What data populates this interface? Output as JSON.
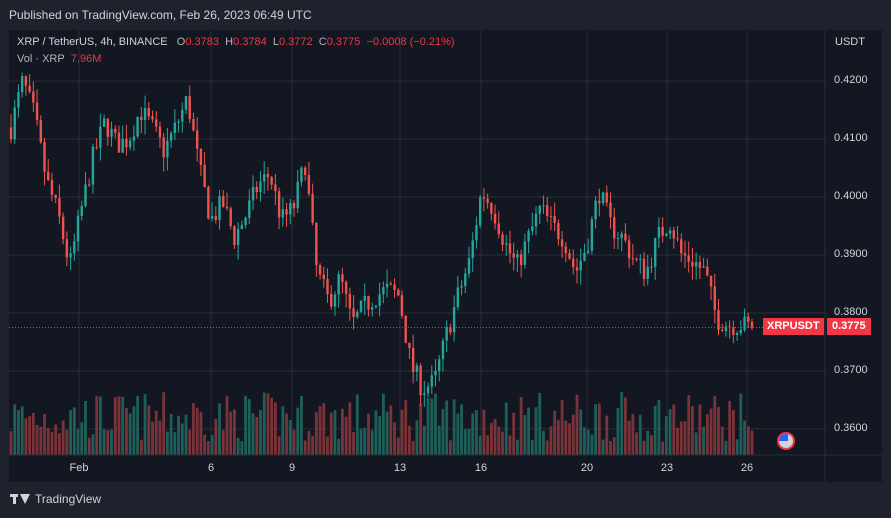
{
  "header": {
    "published": "Published on TradingView.com, Feb 26, 2023 06:49 UTC"
  },
  "legend": {
    "symbol": "XRP / TetherUS, 4h, BINANCE",
    "o_label": "O",
    "o_value": "0.3783",
    "h_label": "H",
    "h_value": "0.3784",
    "l_label": "L",
    "l_value": "0.3772",
    "c_label": "C",
    "c_value": "0.3775",
    "change": "−0.0008 (−0.21%)",
    "vol_label": "Vol · XRP",
    "vol_value": "7.96M"
  },
  "price_scale": {
    "unit": "USDT"
  },
  "last_price": {
    "symbol": "XRPUSDT",
    "value": "0.3775"
  },
  "footer": {
    "brand": "TradingView"
  },
  "colors": {
    "up": "#26a69a",
    "down": "#ef5350",
    "background": "#131722",
    "grid": "#2a2e39"
  },
  "chart_data": {
    "type": "candlestick",
    "y_ticks": [
      "0.4200",
      "0.4100",
      "0.4000",
      "0.3900",
      "0.3800",
      "0.3700",
      "0.3600"
    ],
    "x_ticks": [
      "Feb",
      "6",
      "9",
      "13",
      "16",
      "20",
      "23",
      "26"
    ],
    "ylim": [
      0.3555,
      0.4245
    ],
    "last_price": 0.3775,
    "waypoints": [
      [
        0.412,
        0.42
      ],
      [
        0.414,
        0.403
      ],
      [
        0.397,
        0.388
      ],
      [
        0.398,
        0.407
      ],
      [
        0.413,
        0.409
      ],
      [
        0.41,
        0.415
      ],
      [
        0.412,
        0.408
      ],
      [
        0.412,
        0.417
      ],
      [
        0.405,
        0.396
      ],
      [
        0.399,
        0.393
      ],
      [
        0.397,
        0.402
      ],
      [
        0.404,
        0.396
      ],
      [
        0.398,
        0.406
      ],
      [
        0.387,
        0.382
      ],
      [
        0.386,
        0.378
      ],
      [
        0.381,
        0.383
      ],
      [
        0.384,
        0.383
      ],
      [
        0.371,
        0.367
      ],
      [
        0.368,
        0.376
      ],
      [
        0.383,
        0.389
      ],
      [
        0.401,
        0.398
      ],
      [
        0.392,
        0.388
      ],
      [
        0.393,
        0.398
      ],
      [
        0.395,
        0.393
      ],
      [
        0.387,
        0.392
      ],
      [
        0.401,
        0.395
      ],
      [
        0.393,
        0.389
      ],
      [
        0.387,
        0.393
      ],
      [
        0.396,
        0.39
      ],
      [
        0.389,
        0.387
      ],
      [
        0.379,
        0.378
      ],
      [
        0.378,
        0.3775
      ]
    ]
  }
}
